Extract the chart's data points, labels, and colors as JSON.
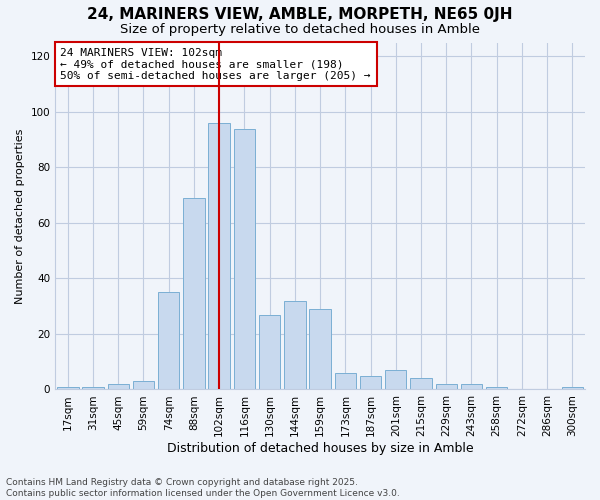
{
  "title": "24, MARINERS VIEW, AMBLE, MORPETH, NE65 0JH",
  "subtitle": "Size of property relative to detached houses in Amble",
  "xlabel": "Distribution of detached houses by size in Amble",
  "ylabel": "Number of detached properties",
  "categories": [
    "17sqm",
    "31sqm",
    "45sqm",
    "59sqm",
    "74sqm",
    "88sqm",
    "102sqm",
    "116sqm",
    "130sqm",
    "144sqm",
    "159sqm",
    "173sqm",
    "187sqm",
    "201sqm",
    "215sqm",
    "229sqm",
    "243sqm",
    "258sqm",
    "272sqm",
    "286sqm",
    "300sqm"
  ],
  "values": [
    1,
    1,
    2,
    3,
    35,
    69,
    96,
    94,
    27,
    32,
    29,
    6,
    5,
    7,
    4,
    2,
    2,
    1,
    0,
    0,
    1
  ],
  "bar_color": "#c8d9ee",
  "bar_edge_color": "#7bafd4",
  "annotation_line1": "24 MARINERS VIEW: 102sqm",
  "annotation_line2": "← 49% of detached houses are smaller (198)",
  "annotation_line3": "50% of semi-detached houses are larger (205) →",
  "annotation_box_color": "#ffffff",
  "annotation_box_edge_color": "#cc0000",
  "vline_x_index": 6,
  "vline_color": "#cc0000",
  "background_color": "#f0f4fa",
  "grid_color": "#c0cce0",
  "ylim": [
    0,
    125
  ],
  "yticks": [
    0,
    20,
    40,
    60,
    80,
    100,
    120
  ],
  "footer_line1": "Contains HM Land Registry data © Crown copyright and database right 2025.",
  "footer_line2": "Contains public sector information licensed under the Open Government Licence v3.0.",
  "title_fontsize": 11,
  "subtitle_fontsize": 9.5,
  "xlabel_fontsize": 9,
  "ylabel_fontsize": 8,
  "tick_fontsize": 7.5,
  "annotation_fontsize": 8,
  "footer_fontsize": 6.5
}
